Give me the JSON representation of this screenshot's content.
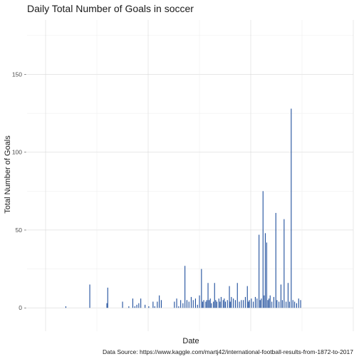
{
  "chart_data": {
    "type": "bar",
    "title": "Daily Total Number of Goals in soccer",
    "xlabel": "Date",
    "ylabel": "Total Number of Goals",
    "caption": "Data Source: https://www.kaggle.com/martj42/international-football-results-from-1872-to-2017",
    "ylim": [
      -15,
      185
    ],
    "y_ticks": [
      0,
      50,
      100,
      150
    ],
    "x_ticks": [],
    "grid": true,
    "legend": "none",
    "bar_color": "#1f4e9c",
    "background": "#ffffff",
    "x_index_range": [
      0,
      1000
    ],
    "x_note": "dates not labeled on axis; x values are relative positions along the date range",
    "values": [
      [
        71,
        1
      ],
      [
        155,
        15
      ],
      [
        215,
        3
      ],
      [
        218,
        13
      ],
      [
        270,
        4
      ],
      [
        292,
        1
      ],
      [
        306,
        6
      ],
      [
        313,
        1
      ],
      [
        320,
        2
      ],
      [
        327,
        3
      ],
      [
        334,
        6
      ],
      [
        349,
        2
      ],
      [
        362,
        1
      ],
      [
        377,
        4
      ],
      [
        383,
        1
      ],
      [
        392,
        4
      ],
      [
        399,
        8
      ],
      [
        406,
        5
      ],
      [
        452,
        4
      ],
      [
        460,
        6
      ],
      [
        467,
        1
      ],
      [
        474,
        5
      ],
      [
        482,
        3
      ],
      [
        489,
        27
      ],
      [
        496,
        5
      ],
      [
        503,
        4
      ],
      [
        511,
        7
      ],
      [
        518,
        5
      ],
      [
        526,
        6
      ],
      [
        533,
        2
      ],
      [
        540,
        8
      ],
      [
        547,
        25
      ],
      [
        551,
        4
      ],
      [
        555,
        5
      ],
      [
        562,
        4
      ],
      [
        566,
        5
      ],
      [
        570,
        16
      ],
      [
        574,
        5
      ],
      [
        578,
        6
      ],
      [
        582,
        3
      ],
      [
        589,
        4
      ],
      [
        593,
        16
      ],
      [
        597,
        5
      ],
      [
        601,
        4
      ],
      [
        608,
        6
      ],
      [
        612,
        4
      ],
      [
        616,
        7
      ],
      [
        623,
        5
      ],
      [
        627,
        6
      ],
      [
        631,
        4
      ],
      [
        638,
        5
      ],
      [
        645,
        14
      ],
      [
        648,
        4
      ],
      [
        652,
        7
      ],
      [
        659,
        6
      ],
      [
        666,
        5
      ],
      [
        673,
        16
      ],
      [
        680,
        4
      ],
      [
        687,
        5
      ],
      [
        694,
        5
      ],
      [
        701,
        7
      ],
      [
        708,
        14
      ],
      [
        712,
        4
      ],
      [
        715,
        5
      ],
      [
        722,
        6
      ],
      [
        729,
        4
      ],
      [
        736,
        7
      ],
      [
        742,
        6
      ],
      [
        749,
        47
      ],
      [
        753,
        5
      ],
      [
        757,
        6
      ],
      [
        763,
        75
      ],
      [
        767,
        8
      ],
      [
        771,
        48
      ],
      [
        776,
        42
      ],
      [
        780,
        5
      ],
      [
        784,
        6
      ],
      [
        788,
        8
      ],
      [
        794,
        4
      ],
      [
        801,
        7
      ],
      [
        808,
        61
      ],
      [
        812,
        5
      ],
      [
        819,
        4
      ],
      [
        826,
        15
      ],
      [
        831,
        5
      ],
      [
        837,
        57
      ],
      [
        844,
        4
      ],
      [
        851,
        16
      ],
      [
        856,
        4
      ],
      [
        862,
        128
      ],
      [
        868,
        5
      ],
      [
        874,
        4
      ],
      [
        881,
        3
      ],
      [
        888,
        6
      ],
      [
        895,
        5
      ]
    ]
  }
}
